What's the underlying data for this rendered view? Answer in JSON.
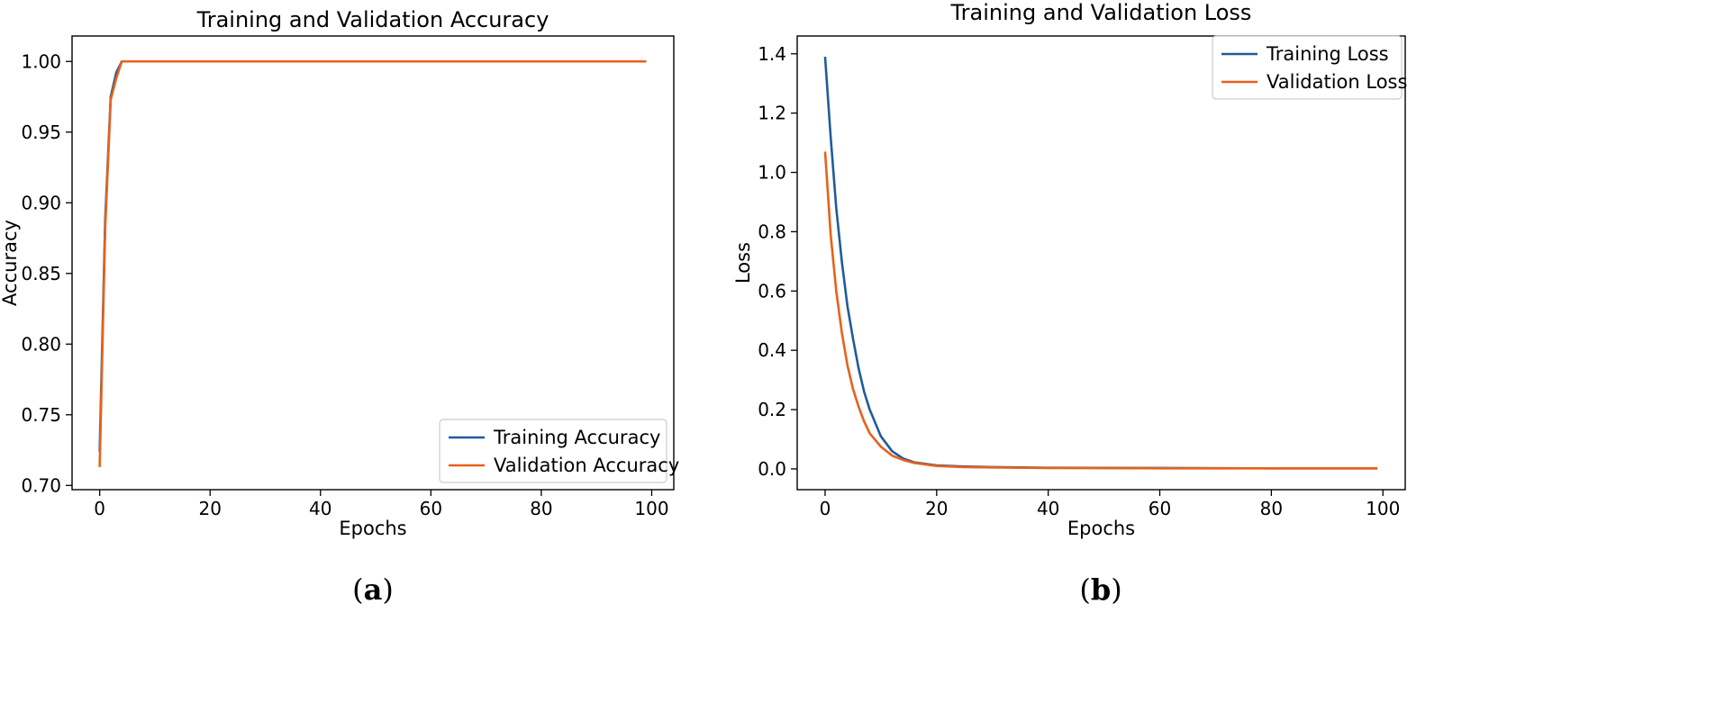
{
  "chart_data": [
    {
      "type": "line",
      "title": "Training and Validation Accuracy",
      "xlabel": "Epochs",
      "ylabel": "Accuracy",
      "xlim": [
        -5,
        104
      ],
      "ylim": [
        0.697,
        1.018
      ],
      "xticks": [
        0,
        20,
        40,
        60,
        80,
        100
      ],
      "yticks": [
        0.7,
        0.75,
        0.8,
        0.85,
        0.9,
        0.95,
        1.0
      ],
      "ytick_decimals": 2,
      "grid": false,
      "legend_position": "lower-right",
      "caption": "a",
      "x": [
        0,
        1,
        2,
        3,
        4,
        5,
        10,
        20,
        30,
        40,
        50,
        60,
        70,
        80,
        90,
        99
      ],
      "series": [
        {
          "name": "Training Accuracy",
          "color": "#1f5c99",
          "values": [
            0.724,
            0.888,
            0.975,
            0.992,
            1.0,
            1.0,
            1.0,
            1.0,
            1.0,
            1.0,
            1.0,
            1.0,
            1.0,
            1.0,
            1.0,
            1.0
          ]
        },
        {
          "name": "Validation Accuracy",
          "color": "#e8611a",
          "values": [
            0.713,
            0.882,
            0.973,
            0.988,
            1.0,
            1.0,
            1.0,
            1.0,
            1.0,
            1.0,
            1.0,
            1.0,
            1.0,
            1.0,
            1.0,
            1.0
          ]
        }
      ]
    },
    {
      "type": "line",
      "title": "Training and Validation Loss",
      "xlabel": "Epochs",
      "ylabel": "Loss",
      "xlim": [
        -5,
        104
      ],
      "ylim": [
        -0.07,
        1.46
      ],
      "xticks": [
        0,
        20,
        40,
        60,
        80,
        100
      ],
      "yticks": [
        0.0,
        0.2,
        0.4,
        0.6,
        0.8,
        1.0,
        1.2,
        1.4
      ],
      "ytick_decimals": 1,
      "grid": false,
      "legend_position": "upper-right",
      "caption": "b",
      "x": [
        0,
        1,
        2,
        3,
        4,
        5,
        6,
        7,
        8,
        10,
        12,
        14,
        16,
        20,
        25,
        30,
        40,
        60,
        80,
        99
      ],
      "series": [
        {
          "name": "Training Loss",
          "color": "#1f5c99",
          "values": [
            1.39,
            1.12,
            0.88,
            0.7,
            0.55,
            0.44,
            0.34,
            0.26,
            0.2,
            0.11,
            0.06,
            0.035,
            0.022,
            0.012,
            0.008,
            0.006,
            0.004,
            0.003,
            0.002,
            0.002
          ]
        },
        {
          "name": "Validation Loss",
          "color": "#e8611a",
          "values": [
            1.07,
            0.79,
            0.6,
            0.46,
            0.35,
            0.27,
            0.21,
            0.16,
            0.12,
            0.075,
            0.045,
            0.03,
            0.02,
            0.01,
            0.006,
            0.005,
            0.003,
            0.002,
            0.002,
            0.002
          ]
        }
      ]
    }
  ]
}
